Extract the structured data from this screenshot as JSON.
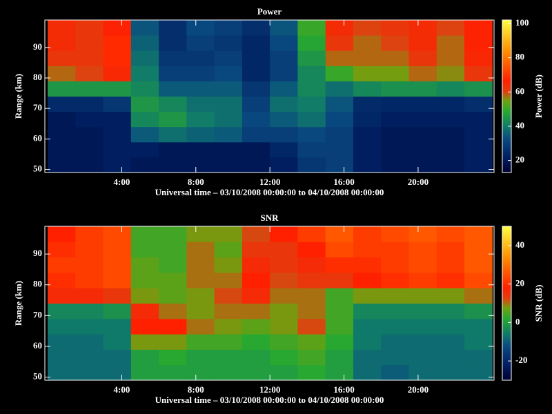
{
  "chart_data": [
    {
      "type": "heatmap",
      "title": "Power",
      "xlabel": "Universal time – 03/10/2008 00:00:00 to 04/10/2008 00:00:00",
      "ylabel": "Range (km)",
      "zlabel": "Power (dB)",
      "x": [
        0.75,
        2.25,
        3.75,
        5.25,
        6.75,
        8.25,
        9.75,
        11.25,
        12.75,
        14.25,
        15.75,
        17.25,
        18.75,
        20.25,
        21.75,
        23.25
      ],
      "y": [
        51.5,
        56.5,
        61.5,
        66.5,
        71.5,
        76.5,
        81.5,
        86.5,
        91.5,
        96.5
      ],
      "values": [
        [
          20,
          20,
          22,
          20,
          20,
          20,
          20,
          20,
          22,
          28,
          30,
          22,
          20,
          20,
          20,
          22
        ],
        [
          20,
          20,
          22,
          22,
          20,
          20,
          20,
          20,
          24,
          30,
          30,
          22,
          20,
          20,
          20,
          22
        ],
        [
          20,
          20,
          22,
          35,
          38,
          36,
          35,
          30,
          30,
          32,
          30,
          22,
          20,
          20,
          20,
          22
        ],
        [
          20,
          22,
          22,
          42,
          45,
          40,
          38,
          32,
          35,
          38,
          32,
          24,
          22,
          22,
          22,
          22
        ],
        [
          25,
          25,
          28,
          45,
          42,
          38,
          38,
          30,
          38,
          40,
          34,
          25,
          24,
          24,
          24,
          26
        ],
        [
          45,
          45,
          45,
          42,
          35,
          35,
          35,
          28,
          35,
          42,
          38,
          42,
          44,
          44,
          42,
          44
        ],
        [
          58,
          60,
          65,
          40,
          30,
          30,
          32,
          24,
          30,
          42,
          50,
          55,
          55,
          58,
          56,
          62
        ],
        [
          62,
          62,
          68,
          38,
          28,
          28,
          30,
          24,
          30,
          45,
          58,
          58,
          58,
          62,
          58,
          65
        ],
        [
          64,
          62,
          68,
          36,
          26,
          30,
          28,
          24,
          32,
          48,
          62,
          58,
          60,
          64,
          58,
          66
        ],
        [
          64,
          62,
          66,
          34,
          26,
          32,
          30,
          26,
          34,
          50,
          64,
          60,
          62,
          64,
          60,
          66
        ]
      ],
      "xlim": [
        -0.15,
        24.1
      ],
      "xticks": [
        {
          "value": 4,
          "label": "4:00"
        },
        {
          "value": 8,
          "label": "8:00"
        },
        {
          "value": 12,
          "label": "12:00"
        },
        {
          "value": 16,
          "label": "16:00"
        },
        {
          "value": 20,
          "label": "20:00"
        }
      ],
      "ylim": [
        49,
        99
      ],
      "yticks": [
        50,
        60,
        70,
        80,
        90
      ],
      "zlim": [
        13,
        102
      ],
      "zticks": [
        20,
        40,
        60,
        80,
        100
      ]
    },
    {
      "type": "heatmap",
      "title": "SNR",
      "xlabel": "Universal time – 03/10/2008 00:00:00 to 04/10/2008 00:00:00",
      "ylabel": "Range (km)",
      "zlabel": "SNR (dB)",
      "x": [
        0.75,
        2.25,
        3.75,
        5.25,
        6.75,
        8.25,
        9.75,
        11.25,
        12.75,
        14.25,
        15.75,
        17.25,
        18.75,
        20.25,
        21.75,
        23.25
      ],
      "y": [
        51.5,
        56.5,
        61.5,
        66.5,
        71.5,
        76.5,
        81.5,
        86.5,
        91.5,
        96.5
      ],
      "values": [
        [
          -8,
          -8,
          -8,
          0,
          0,
          0,
          0,
          0,
          0,
          2,
          0,
          -8,
          -10,
          -8,
          -8,
          -8
        ],
        [
          -8,
          -8,
          -8,
          0,
          2,
          0,
          0,
          0,
          2,
          4,
          0,
          -8,
          -8,
          -8,
          -8,
          -8
        ],
        [
          -8,
          -8,
          -6,
          8,
          8,
          4,
          4,
          2,
          4,
          6,
          2,
          -6,
          -8,
          -8,
          -8,
          -6
        ],
        [
          -6,
          -6,
          -6,
          18,
          18,
          10,
          8,
          6,
          8,
          12,
          4,
          -6,
          -6,
          -6,
          -6,
          -6
        ],
        [
          -4,
          -4,
          -2,
          16,
          10,
          8,
          10,
          10,
          8,
          10,
          4,
          -4,
          -4,
          -4,
          -4,
          -2
        ],
        [
          16,
          16,
          14,
          8,
          6,
          8,
          12,
          16,
          10,
          10,
          4,
          8,
          8,
          8,
          8,
          10
        ],
        [
          20,
          22,
          24,
          6,
          6,
          10,
          10,
          18,
          12,
          14,
          14,
          18,
          20,
          22,
          20,
          24
        ],
        [
          22,
          22,
          24,
          6,
          4,
          10,
          8,
          16,
          14,
          16,
          20,
          20,
          22,
          24,
          22,
          26
        ],
        [
          20,
          22,
          24,
          4,
          4,
          10,
          6,
          14,
          14,
          18,
          24,
          22,
          22,
          24,
          22,
          26
        ],
        [
          18,
          22,
          24,
          4,
          4,
          8,
          8,
          12,
          18,
          22,
          26,
          22,
          24,
          26,
          24,
          26
        ]
      ],
      "xlim": [
        -0.15,
        24.1
      ],
      "xticks": [
        {
          "value": 4,
          "label": "4:00"
        },
        {
          "value": 8,
          "label": "8:00"
        },
        {
          "value": 12,
          "label": "12:00"
        },
        {
          "value": 16,
          "label": "16:00"
        },
        {
          "value": 20,
          "label": "20:00"
        }
      ],
      "ylim": [
        49,
        99
      ],
      "yticks": [
        50,
        60,
        70,
        80,
        90
      ],
      "zlim": [
        -30,
        50
      ],
      "zticks": [
        -20,
        0,
        20,
        40
      ]
    }
  ],
  "colormap": {
    "stops": [
      0,
      0.1,
      0.22,
      0.3,
      0.4,
      0.47,
      0.53,
      0.6,
      0.8,
      1
    ],
    "colors": [
      "#000030",
      "#001e60",
      "#0a4a80",
      "#107a6a",
      "#28a830",
      "#70a010",
      "#e04010",
      "#ff2000",
      "#ff9000",
      "#ffff40"
    ]
  }
}
